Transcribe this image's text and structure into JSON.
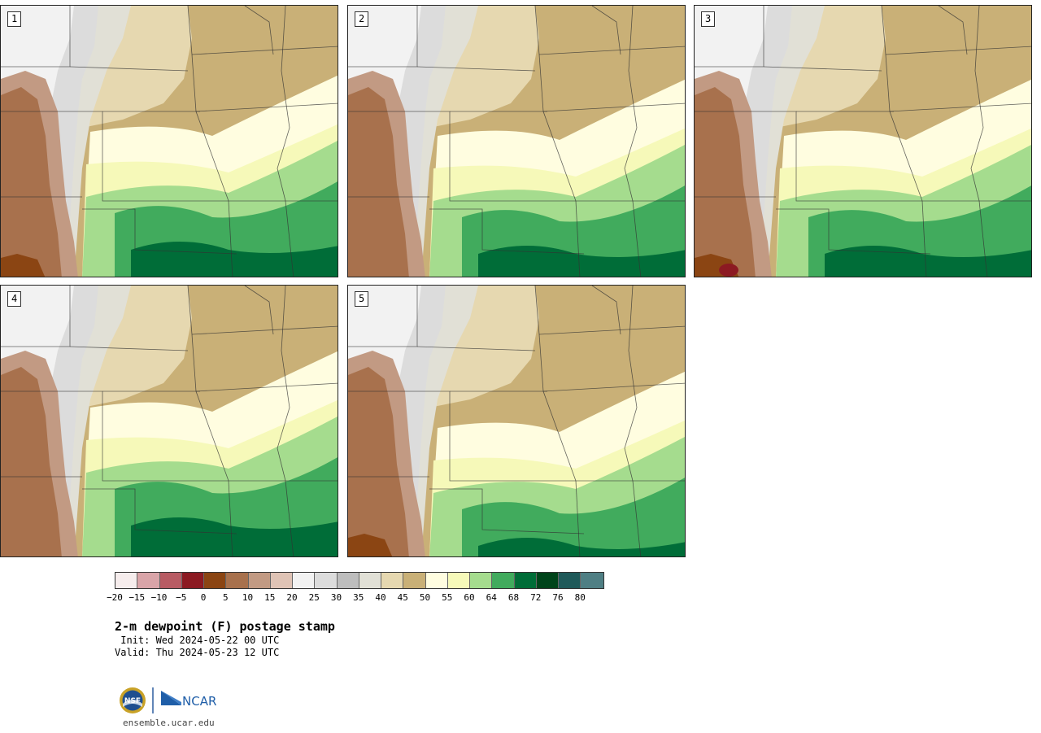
{
  "panels": [
    {
      "label": "1",
      "pattern": 1
    },
    {
      "label": "2",
      "pattern": 2
    },
    {
      "label": "3",
      "pattern": 3
    },
    {
      "label": "4",
      "pattern": 4
    },
    {
      "label": "5",
      "pattern": 5
    }
  ],
  "colorbar": {
    "colors": [
      "#f6eded",
      "#d9a4a8",
      "#b85b63",
      "#8c1a22",
      "#8b4513",
      "#a8714d",
      "#c29a83",
      "#dfc3b5",
      "#f2f2f2",
      "#dcdcdc",
      "#bdbdbd",
      "#e1e0d6",
      "#e6d8b0",
      "#c9b077",
      "#fffde0",
      "#f6f9b9",
      "#a5dc8e",
      "#41ab5d",
      "#006d38",
      "#00441b",
      "#1f5a5a",
      "#4f7f84"
    ],
    "tick_labels": [
      "−20",
      "−15",
      "−10",
      "−5",
      "0",
      "5",
      "10",
      "15",
      "20",
      "25",
      "30",
      "35",
      "40",
      "45",
      "50",
      "55",
      "60",
      "64",
      "68",
      "72",
      "76",
      "80"
    ]
  },
  "title": "2-m dewpoint (F) postage stamp",
  "init": " Init: Wed 2024-05-22 00 UTC",
  "valid": "Valid: Thu 2024-05-23 12 UTC",
  "logo": {
    "nsf_text": "NSF",
    "ncar_text": "NCAR"
  },
  "website": "ensemble.ucar.edu"
}
